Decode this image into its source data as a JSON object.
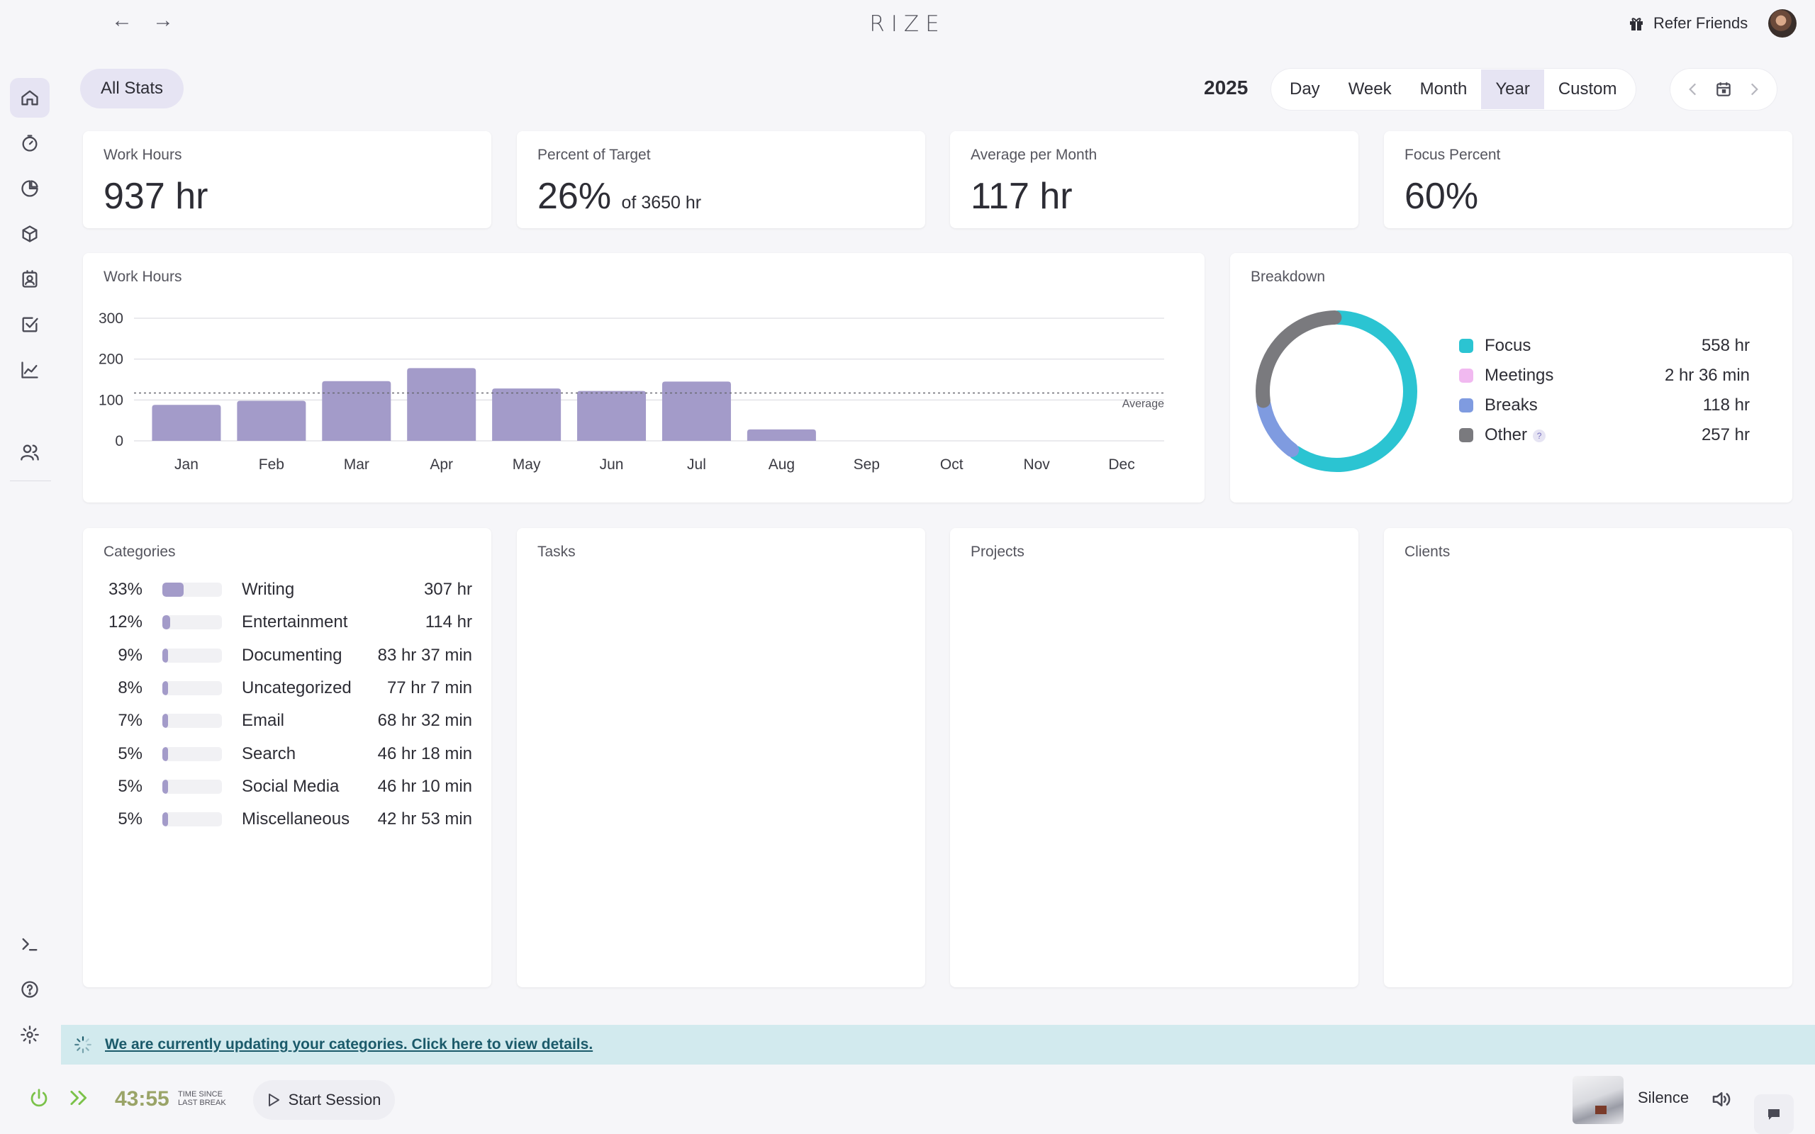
{
  "topbar": {
    "back_icon": "←",
    "forward_icon": "→",
    "app_title": "RIZE",
    "refer_label": "Refer Friends"
  },
  "sidebar": {
    "items": [
      {
        "icon": "home-icon",
        "active": true
      },
      {
        "icon": "timer-icon"
      },
      {
        "icon": "pie-chart-icon"
      },
      {
        "icon": "box-icon"
      },
      {
        "icon": "contact-badge-icon"
      },
      {
        "icon": "checkbox-icon"
      },
      {
        "icon": "line-chart-icon"
      },
      {
        "icon": "users-icon"
      }
    ],
    "bottom_items": [
      "terminal-icon",
      "help-icon",
      "settings-icon"
    ]
  },
  "header": {
    "all_stats_label": "All Stats",
    "year": "2025",
    "tabs": [
      "Day",
      "Week",
      "Month",
      "Year",
      "Custom"
    ],
    "active_tab": "Year"
  },
  "stats": [
    {
      "title": "Work Hours",
      "value": "937 hr",
      "sub": ""
    },
    {
      "title": "Percent of Target",
      "value": "26%",
      "sub": "of 3650 hr"
    },
    {
      "title": "Average per Month",
      "value": "117 hr",
      "sub": ""
    },
    {
      "title": "Focus Percent",
      "value": "60%",
      "sub": ""
    }
  ],
  "work_hours_card": {
    "title": "Work Hours"
  },
  "breakdown": {
    "title": "Breakdown",
    "items": [
      {
        "label": "Focus",
        "value": "558 hr",
        "color": "#2bc4d2"
      },
      {
        "label": "Meetings",
        "value": "2 hr 36 min",
        "color": "#f1b9f0"
      },
      {
        "label": "Breaks",
        "value": "118 hr",
        "color": "#7f9be0"
      },
      {
        "label": "Other",
        "value": "257 hr",
        "color": "#7a7a7e",
        "help": "?"
      }
    ]
  },
  "chart_data": [
    {
      "type": "bar",
      "title": "Work Hours",
      "categories": [
        "Jan",
        "Feb",
        "Mar",
        "Apr",
        "May",
        "Jun",
        "Jul",
        "Aug",
        "Sep",
        "Oct",
        "Nov",
        "Dec"
      ],
      "values": [
        88,
        98,
        146,
        178,
        128,
        122,
        145,
        28,
        0,
        0,
        0,
        0
      ],
      "ylim": [
        0,
        300
      ],
      "yticks": [
        0,
        100,
        200,
        300
      ],
      "average": 117,
      "average_label": "Average",
      "grid": true,
      "color": "#a39bc9"
    },
    {
      "type": "pie",
      "title": "Breakdown",
      "categories": [
        "Focus",
        "Meetings",
        "Breaks",
        "Other"
      ],
      "values": [
        558,
        2.6,
        118,
        257
      ],
      "colors": [
        "#2bc4d2",
        "#f1b9f0",
        "#7f9be0",
        "#7a7a7e"
      ],
      "donut": true
    }
  ],
  "categories_card": {
    "title": "Categories",
    "rows": [
      {
        "pct": "33%",
        "fraction": 0.33,
        "name": "Writing",
        "value": "307 hr"
      },
      {
        "pct": "12%",
        "fraction": 0.12,
        "name": "Entertainment",
        "value": "114 hr"
      },
      {
        "pct": "9%",
        "fraction": 0.09,
        "name": "Documenting",
        "value": "83 hr 37 min"
      },
      {
        "pct": "8%",
        "fraction": 0.08,
        "name": "Uncategorized",
        "value": "77 hr 7 min"
      },
      {
        "pct": "7%",
        "fraction": 0.07,
        "name": "Email",
        "value": "68 hr 32 min"
      },
      {
        "pct": "5%",
        "fraction": 0.05,
        "name": "Search",
        "value": "46 hr 18 min"
      },
      {
        "pct": "5%",
        "fraction": 0.05,
        "name": "Social Media",
        "value": "46 hr 10 min"
      },
      {
        "pct": "5%",
        "fraction": 0.05,
        "name": "Miscellaneous",
        "value": "42 hr 53 min"
      }
    ]
  },
  "empty_cards": {
    "tasks": "Tasks",
    "projects": "Projects",
    "clients": "Clients"
  },
  "banner": {
    "text": "We are currently updating your categories. Click here to view details."
  },
  "bottombar": {
    "timer": "43:55",
    "timer_caption_1": "TIME SINCE",
    "timer_caption_2": "LAST BREAK",
    "start_session_label": "Start Session",
    "music_label": "Silence"
  }
}
